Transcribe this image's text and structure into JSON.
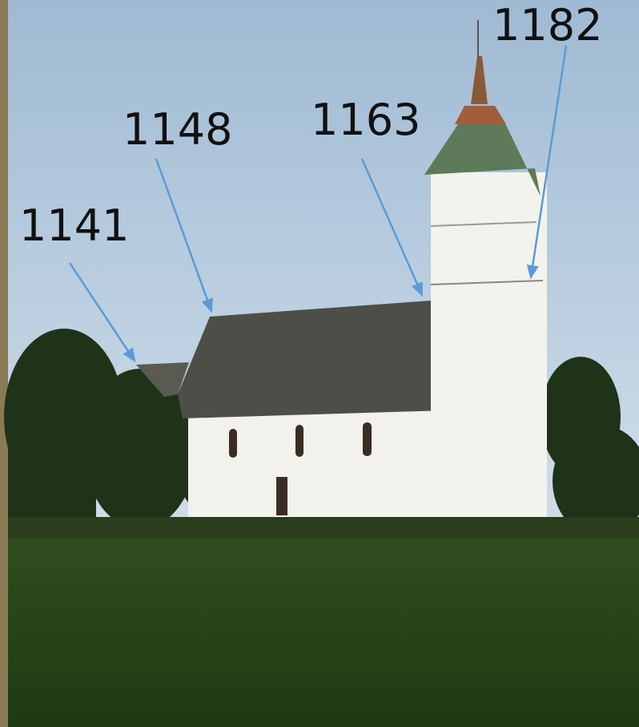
{
  "annotations": [
    {
      "label": "1141"
    },
    {
      "label": "1148"
    },
    {
      "label": "1163"
    },
    {
      "label": "1182"
    }
  ]
}
